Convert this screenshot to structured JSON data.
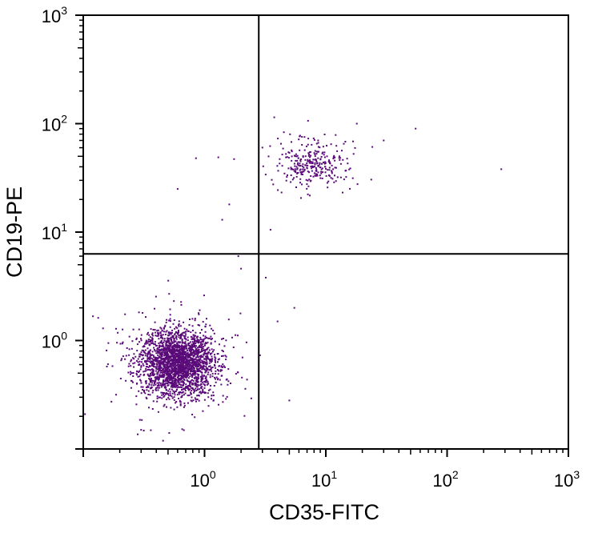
{
  "chart_data": {
    "type": "scatter",
    "xlabel": "CD35-FITC",
    "ylabel": "CD19-PE",
    "xscale": "log",
    "yscale": "log",
    "xlim": [
      0.1,
      1000
    ],
    "ylim": [
      0.1,
      1000
    ],
    "x_ticks": [
      {
        "base": "10",
        "exp": "0",
        "value": 1
      },
      {
        "base": "10",
        "exp": "1",
        "value": 10
      },
      {
        "base": "10",
        "exp": "2",
        "value": 100
      },
      {
        "base": "10",
        "exp": "3",
        "value": 1000
      }
    ],
    "y_ticks": [
      {
        "base": "10",
        "exp": "0",
        "value": 1
      },
      {
        "base": "10",
        "exp": "1",
        "value": 10
      },
      {
        "base": "10",
        "exp": "2",
        "value": 100
      },
      {
        "base": "10",
        "exp": "3",
        "value": 1000
      }
    ],
    "quadrant_gates": {
      "x": 2.8,
      "y": 6.3
    },
    "point_color": "#5a0a78",
    "populations": [
      {
        "center": [
          0.6,
          0.62
        ],
        "count": 2400,
        "log_spread": [
          0.15,
          0.15
        ]
      },
      {
        "center": [
          7.5,
          42
        ],
        "count": 300,
        "log_spread": [
          0.14,
          0.1
        ]
      }
    ],
    "outliers": [
      [
        280,
        38
      ],
      [
        55,
        90
      ],
      [
        0.6,
        25
      ],
      [
        0.85,
        48
      ],
      [
        1.4,
        13
      ],
      [
        1.6,
        18
      ],
      [
        1.9,
        6
      ],
      [
        2,
        4.6
      ],
      [
        3.5,
        10.5
      ],
      [
        3.2,
        3.8
      ],
      [
        5.5,
        2
      ],
      [
        4,
        1.5
      ],
      [
        5,
        0.28
      ],
      [
        0.3,
        0.15
      ],
      [
        18,
        100
      ],
      [
        30,
        70
      ]
    ]
  }
}
